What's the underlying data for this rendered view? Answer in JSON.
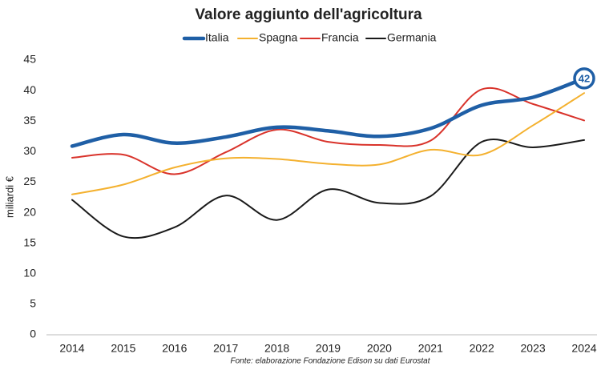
{
  "chart_data": {
    "type": "line",
    "title": "Valore aggiunto dell'agricoltura",
    "categories": [
      "2014",
      "2015",
      "2016",
      "2017",
      "2018",
      "2019",
      "2020",
      "2021",
      "2022",
      "2023",
      "2024"
    ],
    "series": [
      {
        "name": "Italia",
        "color": "#1f5fa6",
        "values": [
          30.9,
          32.8,
          31.4,
          32.4,
          34.0,
          33.4,
          32.5,
          33.8,
          37.6,
          38.9,
          42
        ]
      },
      {
        "name": "Spagna",
        "color": "#f4b12f",
        "values": [
          23.0,
          24.6,
          27.4,
          28.9,
          28.8,
          28.0,
          27.9,
          30.3,
          29.5,
          34.3,
          39.6
        ]
      },
      {
        "name": "Francia",
        "color": "#d9332b",
        "values": [
          29.0,
          29.5,
          26.3,
          29.9,
          33.6,
          31.6,
          31.1,
          31.8,
          40.2,
          37.8,
          35.1
        ]
      },
      {
        "name": "Germania",
        "color": "#1a1a1a",
        "values": [
          22.1,
          16.1,
          17.6,
          22.8,
          18.8,
          23.8,
          21.6,
          22.7,
          31.6,
          30.7,
          31.9
        ]
      }
    ],
    "ylabel": "miliardi €",
    "ylim": [
      0,
      45
    ],
    "yticks": [
      0,
      5,
      10,
      15,
      20,
      25,
      30,
      35,
      40,
      45
    ],
    "grid": false,
    "legend": "top",
    "source": "Fonte: elaborazione Fondazione Edison su dati Eurostat"
  }
}
